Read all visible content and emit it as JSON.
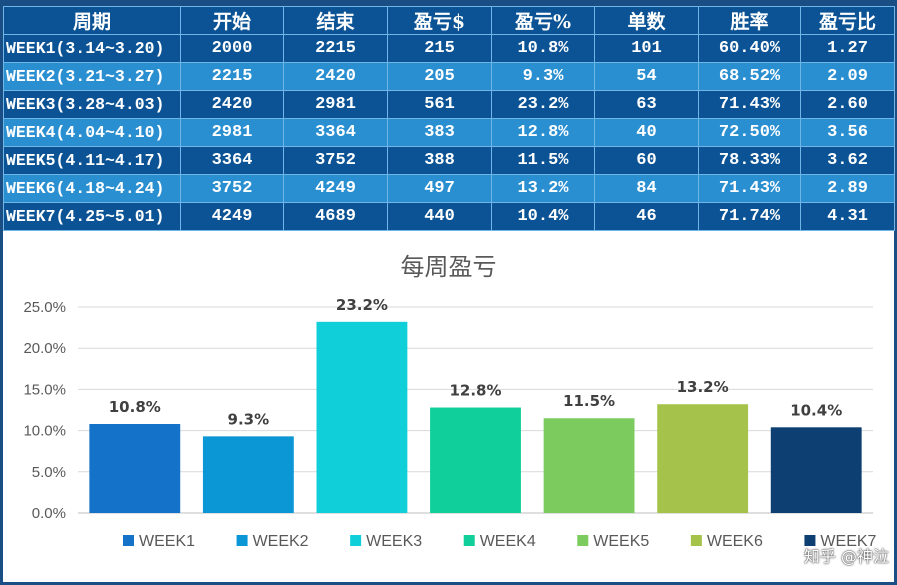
{
  "table": {
    "headers": [
      "周期",
      "开始",
      "结束",
      "盈亏$",
      "盈亏%",
      "单数",
      "胜率",
      "盈亏比"
    ],
    "rows": [
      [
        "WEEK1(3.14~3.20)",
        "2000",
        "2215",
        "215",
        "10.8%",
        "101",
        "60.40%",
        "1.27"
      ],
      [
        "WEEK2(3.21~3.27)",
        "2215",
        "2420",
        "205",
        "9.3%",
        "54",
        "68.52%",
        "2.09"
      ],
      [
        "WEEK3(3.28~4.03)",
        "2420",
        "2981",
        "561",
        "23.2%",
        "63",
        "71.43%",
        "2.60"
      ],
      [
        "WEEK4(4.04~4.10)",
        "2981",
        "3364",
        "383",
        "12.8%",
        "40",
        "72.50%",
        "3.56"
      ],
      [
        "WEEK5(4.11~4.17)",
        "3364",
        "3752",
        "388",
        "11.5%",
        "60",
        "78.33%",
        "3.62"
      ],
      [
        "WEEK6(4.18~4.24)",
        "3752",
        "4249",
        "497",
        "13.2%",
        "84",
        "71.43%",
        "2.89"
      ],
      [
        "WEEK7(4.25~5.01)",
        "4249",
        "4689",
        "440",
        "10.4%",
        "46",
        "71.74%",
        "4.31"
      ]
    ]
  },
  "chart_data": {
    "type": "bar",
    "title": "每周盈亏",
    "xlabel": "",
    "ylabel": "",
    "ylim": [
      0,
      25
    ],
    "yticks": [
      0,
      5,
      10,
      15,
      20,
      25
    ],
    "ytick_labels": [
      "0.0%",
      "5.0%",
      "10.0%",
      "15.0%",
      "20.0%",
      "25.0%"
    ],
    "grid": true,
    "legend_position": "bottom",
    "series": [
      {
        "name": "WEEK1",
        "value": 10.8,
        "label": "10.8%",
        "color": "#1473c9"
      },
      {
        "name": "WEEK2",
        "value": 9.3,
        "label": "9.3%",
        "color": "#0b96d6"
      },
      {
        "name": "WEEK3",
        "value": 23.2,
        "label": "23.2%",
        "color": "#11cfd8"
      },
      {
        "name": "WEEK4",
        "value": 12.8,
        "label": "12.8%",
        "color": "#10cf9a"
      },
      {
        "name": "WEEK5",
        "value": 11.5,
        "label": "11.5%",
        "color": "#7ccb5f"
      },
      {
        "name": "WEEK6",
        "value": 13.2,
        "label": "13.2%",
        "color": "#a5c24b"
      },
      {
        "name": "WEEK7",
        "value": 10.4,
        "label": "10.4%",
        "color": "#0d3f73"
      }
    ]
  },
  "watermark": "知乎 @神泣"
}
